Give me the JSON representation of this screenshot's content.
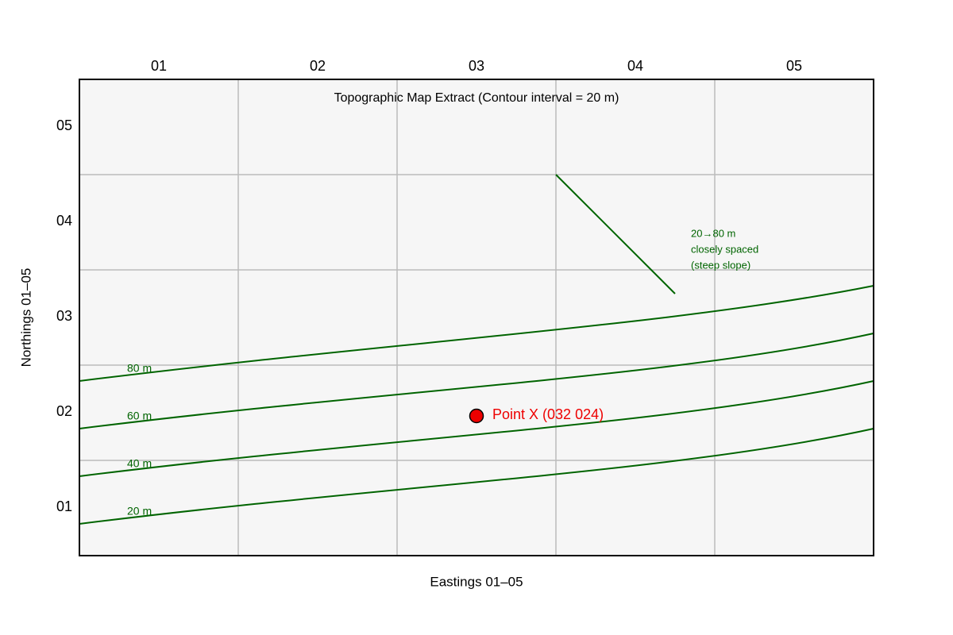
{
  "title": "Topographic Map Extract (Contour interval = 20 m)",
  "x_axis": {
    "label": "Eastings 01–05",
    "ticks": [
      "01",
      "02",
      "03",
      "04",
      "05"
    ]
  },
  "y_axis": {
    "label": "Northings 01–05",
    "ticks": [
      "05",
      "04",
      "03",
      "02",
      "01"
    ]
  },
  "contours": [
    {
      "label": "80 m"
    },
    {
      "label": "60 m"
    },
    {
      "label": "40 m"
    },
    {
      "label": "20 m"
    }
  ],
  "point": {
    "label": "Point X (032 024)"
  },
  "annotation": {
    "lines": [
      "20→80 m",
      "closely spaced",
      "(steep slope)"
    ]
  }
}
